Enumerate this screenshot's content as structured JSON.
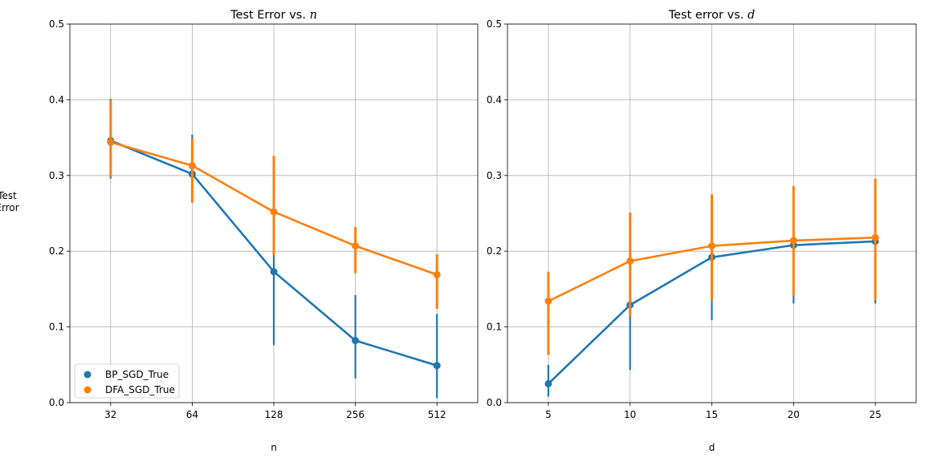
{
  "chart_data": [
    {
      "type": "line",
      "title_prefix": "Test Error vs. ",
      "title_var": "n",
      "xlabel": "n",
      "ylabel_lines": [
        "Test",
        "Error"
      ],
      "categories": [
        "32",
        "64",
        "128",
        "256",
        "512"
      ],
      "ylim": [
        0,
        0.5
      ],
      "yticks": [
        0.0,
        0.1,
        0.2,
        0.3,
        0.4,
        0.5
      ],
      "ytick_labels": [
        "0.0",
        "0.1",
        "0.2",
        "0.3",
        "0.4",
        "0.5"
      ],
      "grid": true,
      "legend_position": "lower-left",
      "series": [
        {
          "name": "BP_SGD_True",
          "color": "#1f77b4",
          "values": [
            0.346,
            0.302,
            0.173,
            0.082,
            0.049
          ],
          "err_low": [
            0.296,
            0.267,
            0.076,
            0.032,
            0.006
          ],
          "err_high": [
            0.401,
            0.354,
            0.209,
            0.142,
            0.117
          ]
        },
        {
          "name": "DFA_SGD_True",
          "color": "#ff7f0e",
          "values": [
            0.344,
            0.313,
            0.252,
            0.207,
            0.169
          ],
          "err_low": [
            0.298,
            0.264,
            0.195,
            0.171,
            0.124
          ],
          "err_high": [
            0.399,
            0.349,
            0.326,
            0.232,
            0.196
          ]
        }
      ]
    },
    {
      "type": "line",
      "title_prefix": "Test error vs. ",
      "title_var": "d",
      "xlabel": "d",
      "categories": [
        "5",
        "10",
        "15",
        "20",
        "25"
      ],
      "ylim": [
        0,
        0.5
      ],
      "yticks": [
        0.0,
        0.1,
        0.2,
        0.3,
        0.4,
        0.5
      ],
      "ytick_labels": [
        "0.0",
        "0.1",
        "0.2",
        "0.3",
        "0.4",
        "0.5"
      ],
      "grid": true,
      "series": [
        {
          "name": "BP_SGD_True",
          "color": "#1f77b4",
          "values": [
            0.025,
            0.129,
            0.192,
            0.208,
            0.213
          ],
          "err_low": [
            0.008,
            0.043,
            0.109,
            0.131,
            0.131
          ],
          "err_high": [
            0.05,
            0.186,
            0.262,
            0.279,
            0.291
          ]
        },
        {
          "name": "DFA_SGD_True",
          "color": "#ff7f0e",
          "values": [
            0.134,
            0.187,
            0.207,
            0.214,
            0.218
          ],
          "err_low": [
            0.063,
            0.114,
            0.135,
            0.141,
            0.135
          ],
          "err_high": [
            0.173,
            0.251,
            0.275,
            0.286,
            0.296
          ]
        }
      ]
    }
  ]
}
